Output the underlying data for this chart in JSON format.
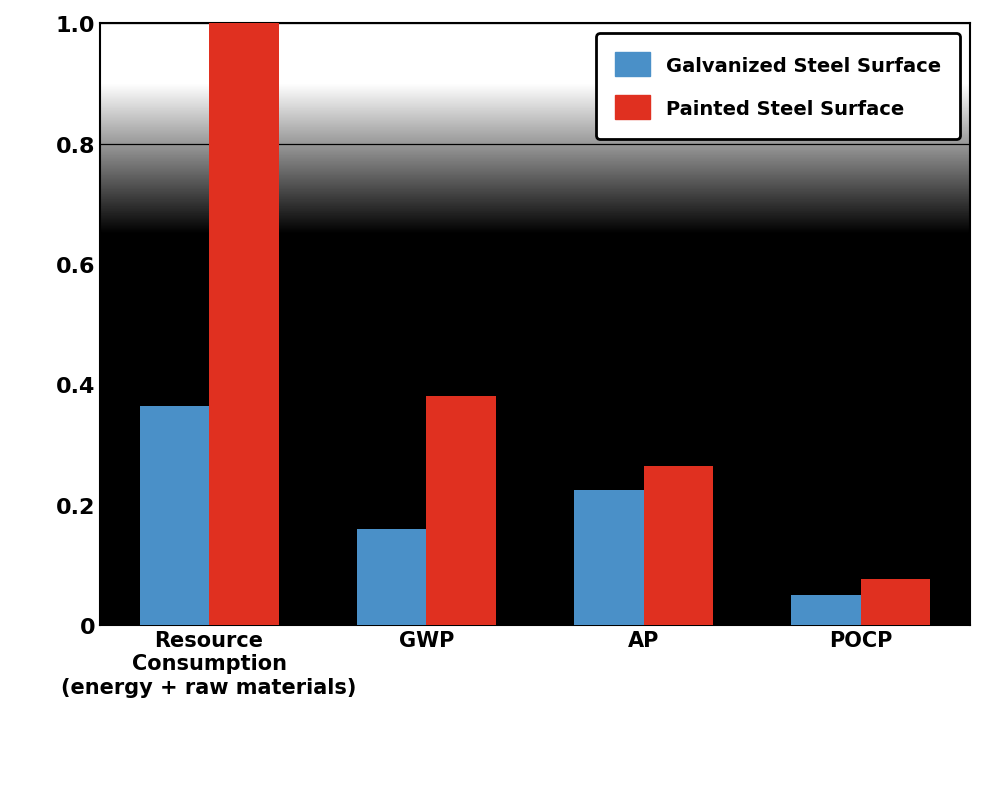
{
  "categories": [
    "Resource\nConsumption\n(energy + raw materials)",
    "GWP",
    "AP",
    "POCP"
  ],
  "galvanized_values": [
    0.365,
    0.16,
    0.225,
    0.05
  ],
  "painted_values": [
    1.0,
    0.38,
    0.265,
    0.077
  ],
  "galvanized_color": "#4a90c8",
  "painted_color": "#e03020",
  "galvanized_label": "Galvanized Steel Surface",
  "painted_label": "Painted Steel Surface",
  "ylim": [
    0,
    1.0
  ],
  "yticks": [
    0,
    0.2,
    0.4,
    0.6,
    0.8,
    1.0
  ],
  "figure_facecolor": "#ffffff",
  "bg_top_color": "#d8d8d8",
  "bg_bottom_color": "#b0b0b0",
  "legend_facecolor": "#ffffff",
  "legend_edgecolor": "#000000",
  "bar_width": 0.32,
  "figsize": [
    10.0,
    8.03
  ],
  "dpi": 100,
  "tick_fontsize": 16,
  "legend_fontsize": 14,
  "xtick_fontsize": 15
}
